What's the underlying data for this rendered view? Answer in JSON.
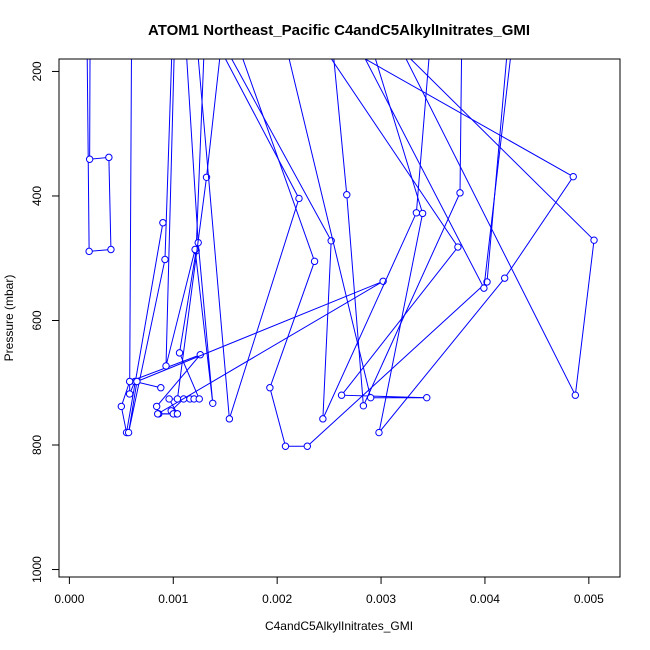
{
  "chart_data": {
    "type": "line",
    "title": "ATOM1 Northeast_Pacific C4andC5AlkylInitrates_GMI",
    "xlabel": "C4andC5AlkylInitrates_GMI",
    "ylabel": "Pressure (mbar)",
    "xlim": [
      -0.0001,
      0.0053
    ],
    "ylim": [
      1012,
      180
    ],
    "y_inverted": true,
    "x_ticks": [
      {
        "value": 0.0,
        "label": "0.000"
      },
      {
        "value": 0.001,
        "label": "0.001"
      },
      {
        "value": 0.002,
        "label": "0.002"
      },
      {
        "value": 0.003,
        "label": "0.003"
      },
      {
        "value": 0.004,
        "label": "0.004"
      },
      {
        "value": 0.005,
        "label": "0.005"
      }
    ],
    "y_ticks": [
      {
        "value": 200,
        "label": "200"
      },
      {
        "value": 400,
        "label": "400"
      },
      {
        "value": 600,
        "label": "600"
      },
      {
        "value": 800,
        "label": "800"
      },
      {
        "value": 1000,
        "label": "1000"
      }
    ],
    "grid": false,
    "series_color": "#0000ff",
    "series": [
      {
        "x": [
          0.0002,
          0.000195,
          0.00038,
          0.0004,
          0.00019,
          0.00017
        ],
        "y": [
          100,
          341,
          338,
          486,
          489,
          150
        ]
      },
      {
        "x": [
          0.0006,
          0.00058,
          0.00063,
          0.00088
        ],
        "y": [
          100,
          718,
          698,
          708
        ]
      },
      {
        "x": [
          0.0009,
          0.00055,
          0.0005,
          0.00058,
          0.00126,
          0.00084,
          0.00086,
          0.00103,
          0.00098,
          0.0011,
          0.00116,
          0.0012,
          0.00125,
          0.00106,
          0.00122,
          0.0013,
          0.0011
        ],
        "y": [
          443,
          780,
          738,
          698,
          655,
          738,
          750,
          750,
          745,
          726,
          726,
          726,
          726,
          652,
          488,
          152,
          100
        ]
      },
      {
        "x": [
          0.00102,
          0.00093,
          0.00121,
          0.00138,
          0.00124,
          0.0011
        ],
        "y": [
          100,
          673,
          486,
          733,
          475,
          100
        ]
      },
      {
        "x": [
          0.001,
          0.00092,
          0.00057,
          0.00065,
          0.00302,
          0.00085,
          0.001,
          0.00104,
          0.00096,
          0.00104,
          0.00132,
          0.0015
        ],
        "y": [
          100,
          502,
          780,
          698,
          537,
          750,
          750,
          750,
          726,
          726,
          370,
          100
        ]
      },
      {
        "x": [
          0.00125,
          0.00221,
          0.00154,
          0.0012
        ],
        "y": [
          100,
          404,
          758,
          100
        ]
      },
      {
        "x": [
          0.0015,
          0.00236,
          0.00193,
          0.00208,
          0.00229,
          0.00402,
          0.00425
        ],
        "y": [
          100,
          505,
          708,
          802,
          802,
          538,
          100
        ]
      },
      {
        "x": [
          0.0013,
          0.00252,
          0.00244,
          0.00334,
          0.0035
        ],
        "y": [
          100,
          472,
          758,
          427,
          100
        ]
      },
      {
        "x": [
          0.0025,
          0.00267,
          0.00283,
          0.00376,
          0.00378
        ],
        "y": [
          100,
          398,
          737,
          395,
          100
        ]
      },
      {
        "x": [
          0.0022,
          0.00374,
          0.00262,
          0.00344,
          0.0029,
          0.002
        ],
        "y": [
          100,
          482,
          720,
          724,
          724,
          100
        ]
      },
      {
        "x": [
          0.002,
          0.00485,
          0.00419,
          0.00298,
          0.0034,
          0.0028
        ],
        "y": [
          100,
          369,
          532,
          780,
          428,
          100
        ]
      },
      {
        "x": [
          0.0026,
          0.00399,
          0.0043
        ],
        "y": [
          100,
          548,
          100
        ]
      },
      {
        "x": [
          0.0028,
          0.00505,
          0.00487,
          0.003
        ],
        "y": [
          100,
          471,
          720,
          100
        ]
      }
    ]
  }
}
